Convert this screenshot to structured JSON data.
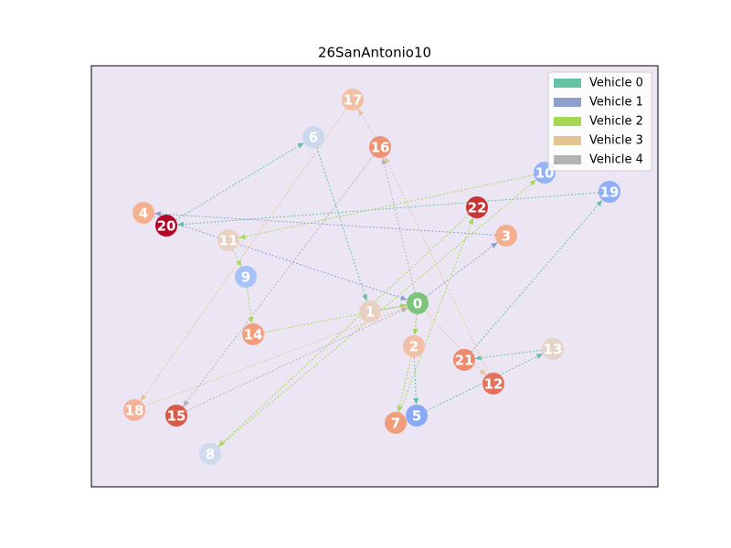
{
  "chart_data": {
    "type": "route-map",
    "title": "26SanAntonio10",
    "nodes": [
      {
        "label": "0",
        "color": "#7dc47d"
      },
      {
        "label": "1",
        "color": "#e8cfc0"
      },
      {
        "label": "2",
        "color": "#f2c0a6"
      },
      {
        "label": "3",
        "color": "#f3ae8e"
      },
      {
        "label": "4",
        "color": "#f4b08f"
      },
      {
        "label": "5",
        "color": "#8aa9f5"
      },
      {
        "label": "6",
        "color": "#cbd8ee"
      },
      {
        "label": "7",
        "color": "#f09d7c"
      },
      {
        "label": "8",
        "color": "#cfdaee"
      },
      {
        "label": "9",
        "color": "#a6c2f8"
      },
      {
        "label": "10",
        "color": "#94b4f7"
      },
      {
        "label": "11",
        "color": "#e9d2c4"
      },
      {
        "label": "12",
        "color": "#e3725c"
      },
      {
        "label": "13",
        "color": "#e7d4c8"
      },
      {
        "label": "14",
        "color": "#f39f7e"
      },
      {
        "label": "15",
        "color": "#d85b4a"
      },
      {
        "label": "16",
        "color": "#ef9273"
      },
      {
        "label": "17",
        "color": "#f3c0a5"
      },
      {
        "label": "18",
        "color": "#f4b298"
      },
      {
        "label": "19",
        "color": "#8fb0f6"
      },
      {
        "label": "20",
        "color": "#b40426"
      },
      {
        "label": "21",
        "color": "#f08a6c"
      },
      {
        "label": "22",
        "color": "#c73534"
      }
    ],
    "series": [
      {
        "name": "Vehicle 0",
        "color": "#66c2a5",
        "stops": [
          0,
          2,
          5,
          13,
          21,
          19,
          20,
          6,
          1,
          0
        ]
      },
      {
        "name": "Vehicle 1",
        "color": "#8da0cb",
        "stops": [
          0,
          3,
          4,
          0
        ]
      },
      {
        "name": "Vehicle 2",
        "color": "#a6d854",
        "stops": [
          0,
          2,
          7,
          22,
          8,
          10,
          11,
          9,
          14,
          0
        ]
      },
      {
        "name": "Vehicle 3",
        "color": "#e5c494",
        "stops": [
          0,
          12,
          16,
          17,
          18,
          0
        ]
      },
      {
        "name": "Vehicle 4",
        "color": "#b3b3b3",
        "stops": [
          0,
          16,
          15,
          0
        ]
      }
    ],
    "legend": "upper right"
  }
}
